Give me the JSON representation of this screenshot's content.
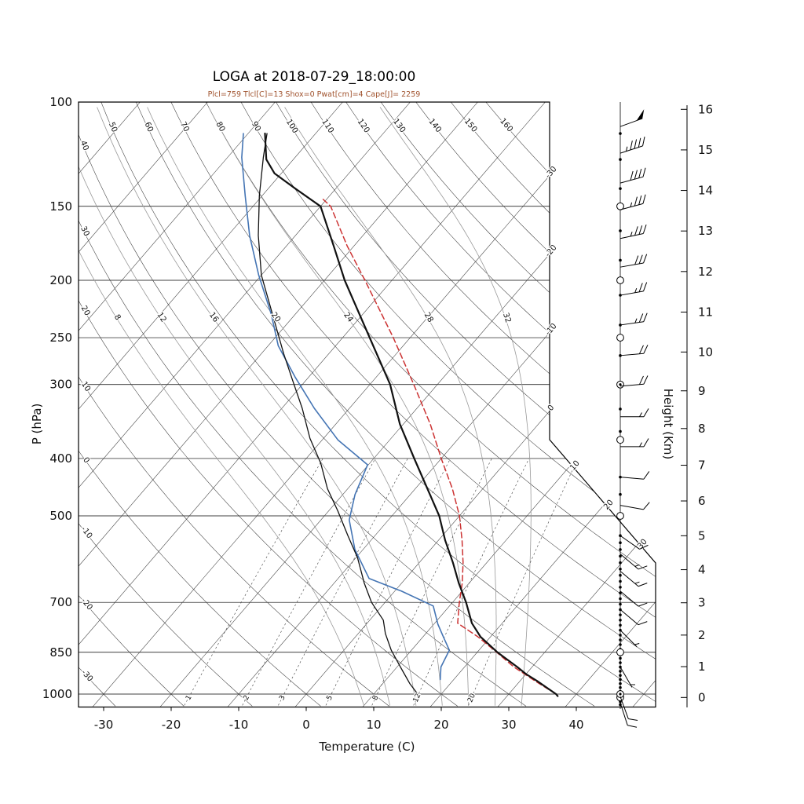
{
  "title": "LOGA at 2018-07-29_18:00:00",
  "subtitle": "Plcl=759 Tlcl[C]=13 Shox=0 Pwat[cm]=4 Cape[J]= 2259",
  "colors": {
    "subtitle": "#A0522D",
    "temperature": "#111111",
    "dewpoint": "#111111",
    "wetbulb": "#4575b4",
    "parcel": "#cc3333",
    "thin_lines": "#3a3a3a",
    "moist_adiabat": "#999999",
    "frame": "#000000"
  },
  "axes": {
    "pressure_label": "P (hPa)",
    "pressure_ticks": [
      100,
      150,
      200,
      250,
      300,
      400,
      500,
      700,
      850,
      1000
    ],
    "temperature_label": "Temper­ature (C)",
    "temperature_label_plain": "Temperature (C)",
    "temperature_ticks": [
      -30,
      -20,
      -10,
      0,
      10,
      20,
      30,
      40
    ],
    "height_label": "Height (Km)",
    "height_ticks_km": [
      0,
      1,
      2,
      3,
      4,
      5,
      6,
      7,
      8,
      9,
      10,
      11,
      12,
      13,
      14,
      15,
      16
    ]
  },
  "background": {
    "isotherm_min": -130,
    "isotherm_max": 50,
    "isotherm_step": 10,
    "isotherm_edge_labels": [
      -30,
      -20,
      -10,
      0,
      10,
      20,
      30
    ],
    "dry_adiabats": [
      -30,
      -20,
      -10,
      0,
      10,
      20,
      30,
      40,
      50,
      60,
      70,
      80,
      90,
      100,
      110,
      120,
      130,
      140,
      150,
      160
    ],
    "moist_adiabats": [
      8,
      12,
      16,
      20,
      24,
      28,
      32
    ],
    "mixing_ratios": [
      1,
      2,
      3,
      5,
      8,
      12,
      20
    ]
  },
  "chart_data": {
    "type": "line",
    "subtype": "skewT-logP-sounding",
    "station": "LOGA",
    "datetime": "2018-07-29 18:00:00",
    "indices": {
      "Plcl": 759,
      "Tlcl_C": 13,
      "Shox": 0,
      "Pwat_cm": 4,
      "Cape_J": 2259
    },
    "xlabel": "Temperature (C)",
    "ylabel": "P (hPa)",
    "ylabel_right": "Height (Km)",
    "series": [
      {
        "name": "temperature",
        "color_key": "temperature",
        "width": 2.2,
        "dashed": false,
        "points": [
          [
            1008,
            37.5
          ],
          [
            1000,
            37
          ],
          [
            950,
            32.5
          ],
          [
            925,
            30
          ],
          [
            900,
            27.8
          ],
          [
            850,
            23
          ],
          [
            800,
            18.5
          ],
          [
            759,
            15.5
          ],
          [
            700,
            12
          ],
          [
            650,
            8.5
          ],
          [
            600,
            5
          ],
          [
            550,
            1
          ],
          [
            500,
            -3
          ],
          [
            450,
            -8.2
          ],
          [
            400,
            -14
          ],
          [
            350,
            -20.5
          ],
          [
            300,
            -27
          ],
          [
            250,
            -36
          ],
          [
            200,
            -47
          ],
          [
            175,
            -53
          ],
          [
            150,
            -60
          ],
          [
            140,
            -66
          ],
          [
            132,
            -71
          ],
          [
            125,
            -74
          ],
          [
            118,
            -76
          ],
          [
            113,
            -77.5
          ]
        ]
      },
      {
        "name": "dewpoint",
        "color_key": "dewpoint",
        "width": 1.3,
        "dashed": false,
        "points": [
          [
            1008,
            17
          ],
          [
            960,
            14
          ],
          [
            900,
            10.5
          ],
          [
            843,
            7
          ],
          [
            790,
            4
          ],
          [
            750,
            2
          ],
          [
            700,
            -2
          ],
          [
            650,
            -5.5
          ],
          [
            588,
            -9.8
          ],
          [
            540,
            -14
          ],
          [
            490,
            -18.7
          ],
          [
            450,
            -23
          ],
          [
            407,
            -27.3
          ],
          [
            370,
            -32
          ],
          [
            329,
            -37
          ],
          [
            295,
            -42
          ],
          [
            266,
            -46.7
          ],
          [
            225,
            -54
          ],
          [
            196,
            -60
          ],
          [
            168,
            -65.5
          ],
          [
            144,
            -70.4
          ],
          [
            124,
            -74.7
          ],
          [
            113,
            -77.2
          ]
        ]
      },
      {
        "name": "wetbulb",
        "color_key": "wetbulb",
        "width": 1.6,
        "dashed": false,
        "points": [
          [
            945,
            18
          ],
          [
            900,
            16.5
          ],
          [
            843,
            15.6
          ],
          [
            800,
            13
          ],
          [
            762,
            10.6
          ],
          [
            710,
            7.6
          ],
          [
            670,
            1
          ],
          [
            638,
            -5.4
          ],
          [
            570,
            -11.2
          ],
          [
            508,
            -15.8
          ],
          [
            460,
            -18.2
          ],
          [
            410,
            -20.1
          ],
          [
            372,
            -27.7
          ],
          [
            329,
            -35.2
          ],
          [
            291,
            -42.1
          ],
          [
            258,
            -48.5
          ],
          [
            228,
            -53.6
          ],
          [
            196,
            -60.4
          ],
          [
            168,
            -66.8
          ],
          [
            144,
            -72.5
          ],
          [
            124,
            -77.9
          ],
          [
            113,
            -80.7
          ]
        ]
      },
      {
        "name": "parcel",
        "color_key": "parcel",
        "width": 1.5,
        "dashed": true,
        "points": [
          [
            1000,
            37
          ],
          [
            950,
            32.2
          ],
          [
            900,
            27.3
          ],
          [
            850,
            22.9
          ],
          [
            800,
            18.1
          ],
          [
            759,
            13.4
          ],
          [
            700,
            11
          ],
          [
            650,
            9
          ],
          [
            600,
            6.5
          ],
          [
            550,
            3.5
          ],
          [
            500,
            0
          ],
          [
            450,
            -4.5
          ],
          [
            400,
            -10
          ],
          [
            350,
            -16
          ],
          [
            300,
            -23.5
          ],
          [
            250,
            -32.5
          ],
          [
            200,
            -44
          ],
          [
            175,
            -51
          ],
          [
            150,
            -58.5
          ],
          [
            145,
            -61
          ]
        ]
      }
    ],
    "winds": [
      {
        "p": 110,
        "spd": 50,
        "angle": 20
      },
      {
        "p": 122,
        "spd": 45,
        "angle": 18
      },
      {
        "p": 137,
        "spd": 40,
        "angle": 15
      },
      {
        "p": 152,
        "spd": 35,
        "angle": 15
      },
      {
        "p": 170,
        "spd": 35,
        "angle": 12
      },
      {
        "p": 190,
        "spd": 30,
        "angle": 10
      },
      {
        "p": 212,
        "spd": 25,
        "angle": 10
      },
      {
        "p": 238,
        "spd": 25,
        "angle": 8
      },
      {
        "p": 268,
        "spd": 20,
        "angle": 5
      },
      {
        "p": 302,
        "spd": 20,
        "angle": 5
      },
      {
        "p": 340,
        "spd": 15,
        "angle": 0
      },
      {
        "p": 382,
        "spd": 15,
        "angle": 0
      },
      {
        "p": 430,
        "spd": 10,
        "angle": -5
      },
      {
        "p": 480,
        "spd": 10,
        "angle": -10
      },
      {
        "p": 540,
        "spd": 10,
        "angle": -35
      },
      {
        "p": 580,
        "spd": 15,
        "angle": -40
      },
      {
        "p": 620,
        "spd": 15,
        "angle": -40
      },
      {
        "p": 670,
        "spd": 10,
        "angle": -40
      },
      {
        "p": 720,
        "spd": 10,
        "angle": -40
      },
      {
        "p": 780,
        "spd": 5,
        "angle": -45
      },
      {
        "p": 900,
        "spd": 5,
        "angle": -60
      },
      {
        "p": 1010,
        "spd": 10,
        "angle": -70
      },
      {
        "p": 1035,
        "spd": 10,
        "angle": -72
      }
    ],
    "markers": {
      "dots": [
        113,
        125,
        140,
        165,
        185,
        212,
        238,
        268,
        330,
        360,
        430,
        460,
        540,
        555,
        570,
        585,
        600,
        615,
        630,
        645,
        660,
        675,
        690,
        705,
        720,
        735,
        750,
        765,
        780,
        795,
        810,
        825,
        840,
        855,
        870,
        885,
        900,
        915,
        930,
        945,
        960,
        975,
        990,
        1005,
        1018,
        1030,
        1042
      ],
      "circles": [
        150,
        200,
        250,
        372,
        500,
        850,
        1013
      ],
      "circledots": [
        300,
        1000
      ]
    }
  }
}
